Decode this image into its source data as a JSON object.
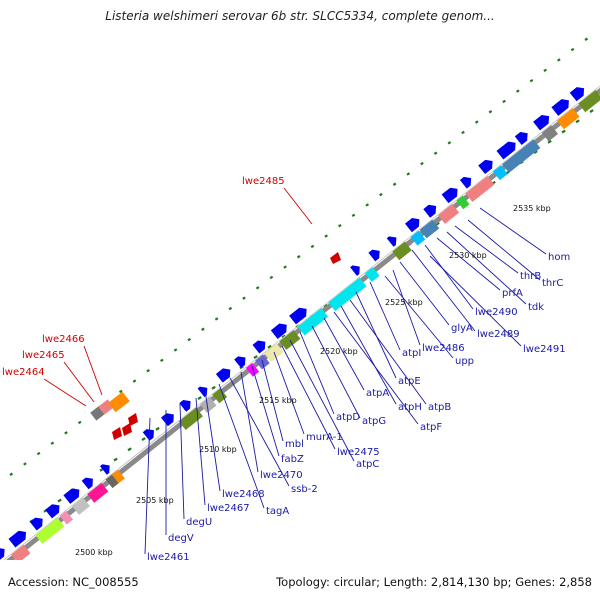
{
  "title": "Listeria welshimeri serovar 6b str. SLCC5334, complete genom...",
  "footer": {
    "accession": "Accession: NC_008555",
    "summary": "Topology: circular; Length: 2,814,130 bp; Genes: 2,858"
  },
  "colors": {
    "backbone": "#8a8a8a",
    "forward_gene": "#0000ee",
    "label_line": "#1a1aa6",
    "highlight": "#d10000",
    "dots": "#1f7a1f"
  },
  "ticks": [
    "2500 kbp",
    "2505 kbp",
    "2510 kbp",
    "2515 kbp",
    "2520 kbp",
    "2525 kbp",
    "2530 kbp",
    "2535 kbp"
  ],
  "gene_labels": [
    "hom",
    "thrC",
    "thrB",
    "tdk",
    "prfA",
    "lwe2490",
    "lwe2489",
    "lwe2491",
    "glyA",
    "lwe2486",
    "upp",
    "atpI",
    "atpE",
    "atpB",
    "atpH",
    "atpF",
    "atpA",
    "atpG",
    "atpD",
    "atpC",
    "lwe2475",
    "murA-1",
    "mbl",
    "fabZ",
    "lwe2470",
    "ssb-2",
    "tagA",
    "lwe2468",
    "lwe2467",
    "degU",
    "degV",
    "lwe2461"
  ],
  "highlighted_labels": [
    "lwe2485",
    "lwe2466",
    "lwe2465",
    "lwe2464"
  ]
}
